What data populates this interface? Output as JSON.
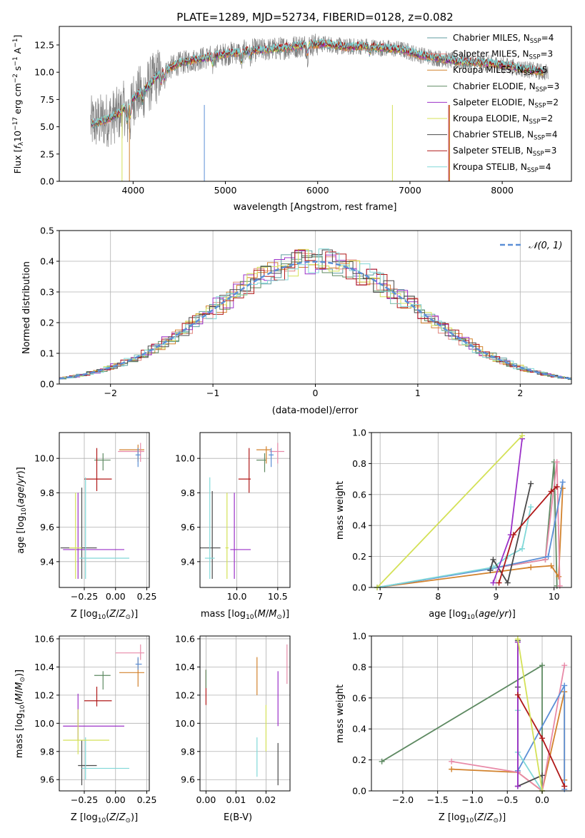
{
  "figure_title": "PLATE=1289, MJD=52734, FIBERID=0128, z=0.082",
  "legend_spectrum": [
    {
      "label": "Chabrier MILES, N$_{SSP}$=4",
      "text": "Chabrier MILES, N",
      "sub": "SSP",
      "suffix": "=4",
      "color": "#5f9ea0"
    },
    {
      "label": "Salpeter MILES, N$_{SSP}$=3",
      "text": "Salpeter MILES, N",
      "sub": "SSP",
      "suffix": "=3",
      "color": "#e0857e"
    },
    {
      "label": "Kroupa MILES, N$_{SSP}$=5",
      "text": "Kroupa MILES, N",
      "sub": "SSP",
      "suffix": "=5",
      "color": "#d2822d"
    },
    {
      "label": "Chabrier ELODIE, N$_{SSP}$=3",
      "text": "Chabrier ELODIE, N",
      "sub": "SSP",
      "suffix": "=3",
      "color": "#5e8a62"
    },
    {
      "label": "Salpeter ELODIE, N$_{SSP}$=2",
      "text": "Salpeter ELODIE, N",
      "sub": "SSP",
      "suffix": "=2",
      "color": "#9b30c8"
    },
    {
      "label": "Kroupa ELODIE, N$_{SSP}$=2",
      "text": "Kroupa ELODIE, N",
      "sub": "SSP",
      "suffix": "=2",
      "color": "#d4e157"
    },
    {
      "label": "Chabrier STELIB, N$_{SSP}$=4",
      "text": "Chabrier STELIB, N",
      "sub": "SSP",
      "suffix": "=4",
      "color": "#4a4a4a"
    },
    {
      "label": "Salpeter STELIB, N$_{SSP}$=3",
      "text": "Salpeter STELIB, N",
      "sub": "SSP",
      "suffix": "=3",
      "color": "#b01818"
    },
    {
      "label": "Kroupa STELIB, N$_{SSP}$=4",
      "text": "Kroupa STELIB, N",
      "sub": "SSP",
      "suffix": "=4",
      "color": "#80d8d8"
    }
  ],
  "legend_residual": "𝒩(0, 1)",
  "chart_data": [
    {
      "type": "line",
      "panel": "spectrum",
      "xlabel": "wavelength [Angstrom, rest frame]",
      "ylabel": "Flux [f$_\\lambda$10$^{-17}$ erg cm$^{-2}$ s$^{-1}$ A$^{-1}$]",
      "ylabel_parts": {
        "a": "Flux [",
        "b": "f",
        "bsub": "λ",
        "c": "10",
        "csup": "−17",
        "d": " erg cm",
        "dsup": "−2",
        "e": " s",
        "esup": "−1",
        "f": " A",
        "fsup": "−1",
        "g": "]"
      },
      "xlim": [
        3200,
        8750
      ],
      "ylim": [
        0,
        14.2
      ],
      "xticks": [
        4000,
        5000,
        6000,
        7000,
        8000
      ],
      "yticks": [
        0.0,
        2.5,
        5.0,
        7.5,
        10.0,
        12.5
      ],
      "data_trend": {
        "wavelength": [
          3550,
          3700,
          3850,
          4000,
          4150,
          4300,
          4500,
          4700,
          4900,
          5100,
          5300,
          5500,
          5700,
          5900,
          6100,
          6300,
          6500,
          6700,
          6900,
          7100,
          7300,
          7500,
          7700,
          7900,
          8100,
          8300,
          8450
        ],
        "flux": [
          5.3,
          5.6,
          6.2,
          7.6,
          8.6,
          10.0,
          10.8,
          11.2,
          11.5,
          11.8,
          12.0,
          12.1,
          12.3,
          12.5,
          12.6,
          12.3,
          12.4,
          12.2,
          12.1,
          11.6,
          11.3,
          11.0,
          10.9,
          10.8,
          10.5,
          10.2,
          10.0
        ]
      },
      "grid": false,
      "legend_position": "upper right"
    },
    {
      "type": "bar",
      "panel": "residuals",
      "xlabel": "(data-model)/error",
      "ylabel": "Normed distribution",
      "xlim": [
        -2.5,
        2.5
      ],
      "ylim": [
        0,
        0.5
      ],
      "xticks": [
        -2,
        -1,
        0,
        1,
        2
      ],
      "xtick_labels": [
        "−2",
        "−1",
        "0",
        "1",
        "2"
      ],
      "yticks": [
        0.0,
        0.1,
        0.2,
        0.3,
        0.4,
        0.5
      ],
      "grid": true,
      "reference_curve": "standard normal N(0,1)",
      "legend_position": "upper right"
    },
    {
      "type": "scatter",
      "panel": "age-Z",
      "xlabel": "Z [log10(Z/Z⊙)]",
      "ylabel": "age [log10(age/yr)]",
      "xlim": [
        -0.45,
        0.27
      ],
      "ylim": [
        9.25,
        10.15
      ],
      "xticks": [
        -0.25,
        0.0,
        0.25
      ],
      "xtick_labels": [
        "−0.25",
        "0.00",
        "0.25"
      ],
      "yticks": [
        9.4,
        9.6,
        9.8,
        10.0
      ],
      "grid": true,
      "points": [
        {
          "x": -0.1,
          "y": 9.99,
          "xerr": [
            0.07,
            0.06
          ],
          "yerr": [
            0.06,
            0.04
          ],
          "color": "#5e8a62"
        },
        {
          "x": -0.15,
          "y": 9.88,
          "xerr": [
            0.1,
            0.12
          ],
          "yerr": [
            0.07,
            0.18
          ],
          "color": "#b01818"
        },
        {
          "x": 0.18,
          "y": 10.05,
          "xerr": [
            0.15,
            0.05
          ],
          "yerr": [
            0.07,
            0.03
          ],
          "color": "#d2822d"
        },
        {
          "x": 0.2,
          "y": 10.04,
          "xerr": [
            0.18,
            0.03
          ],
          "yerr": [
            0.06,
            0.05
          ],
          "color": "#e88aa8"
        },
        {
          "x": 0.18,
          "y": 10.02,
          "xerr": [
            0.02,
            0.02
          ],
          "yerr": [
            0.07,
            0.04
          ],
          "color": "#5b8fd6"
        },
        {
          "x": -0.27,
          "y": 9.48,
          "xerr": [
            0.17,
            0.12
          ],
          "yerr": [
            0.18,
            0.35
          ],
          "color": "#4a4a4a"
        },
        {
          "x": -0.3,
          "y": 9.47,
          "xerr": [
            0.12,
            0.37
          ],
          "yerr": [
            0.17,
            0.33
          ],
          "color": "#9b30c8"
        },
        {
          "x": -0.24,
          "y": 9.42,
          "xerr": [
            0.05,
            0.35
          ],
          "yerr": [
            0.12,
            0.47
          ],
          "color": "#80d8d8"
        },
        {
          "x": -0.32,
          "y": 9.48,
          "xerr": [
            0.05,
            0.05
          ],
          "yerr": [
            0.18,
            0.32
          ],
          "color": "#d4e157"
        }
      ]
    },
    {
      "type": "scatter",
      "panel": "age-mass",
      "xlabel": "mass [log10(M/M⊙)]",
      "xlim": [
        9.55,
        10.65
      ],
      "ylim": [
        9.25,
        10.15
      ],
      "xticks": [
        10.0,
        10.5
      ],
      "xtick_labels": [
        "10.0",
        "10.5"
      ],
      "yticks": [
        9.4,
        9.6,
        9.8,
        10.0
      ],
      "grid": true,
      "points": [
        {
          "x": 10.34,
          "y": 9.99,
          "xerr": [
            0.1,
            0.02
          ],
          "yerr": [
            0.07,
            0.04
          ],
          "color": "#5e8a62"
        },
        {
          "x": 10.15,
          "y": 9.88,
          "xerr": [
            0.13,
            0.02
          ],
          "yerr": [
            0.08,
            0.18
          ],
          "color": "#b01818"
        },
        {
          "x": 10.36,
          "y": 10.05,
          "xerr": [
            0.12,
            0.06
          ],
          "yerr": [
            0.08,
            0.02
          ],
          "color": "#d2822d"
        },
        {
          "x": 10.5,
          "y": 10.04,
          "xerr": [
            0.1,
            0.08
          ],
          "yerr": [
            0.07,
            0.05
          ],
          "color": "#e88aa8"
        },
        {
          "x": 10.42,
          "y": 10.02,
          "xerr": [
            0.03,
            0.03
          ],
          "yerr": [
            0.07,
            0.04
          ],
          "color": "#5b8fd6"
        },
        {
          "x": 9.7,
          "y": 9.48,
          "xerr": [
            0.15,
            0.1
          ],
          "yerr": [
            0.18,
            0.33
          ],
          "color": "#4a4a4a"
        },
        {
          "x": 9.97,
          "y": 9.47,
          "xerr": [
            0.05,
            0.2
          ],
          "yerr": [
            0.17,
            0.33
          ],
          "color": "#9b30c8"
        },
        {
          "x": 9.67,
          "y": 9.42,
          "xerr": [
            0.06,
            0.06
          ],
          "yerr": [
            0.12,
            0.47
          ],
          "color": "#80d8d8"
        },
        {
          "x": 9.88,
          "y": 9.48,
          "xerr": [
            0.02,
            0.02
          ],
          "yerr": [
            0.18,
            0.32
          ],
          "color": "#d4e157"
        }
      ]
    },
    {
      "type": "line",
      "panel": "weight-age",
      "xlabel": "age [log10(age/yr)]",
      "ylabel": "mass weight",
      "xlim": [
        6.85,
        10.3
      ],
      "ylim": [
        0,
        1.0
      ],
      "xticks": [
        7,
        8,
        9,
        10
      ],
      "yticks": [
        0.0,
        0.2,
        0.4,
        0.6,
        0.8,
        1.0
      ],
      "grid": true,
      "series": [
        {
          "color": "#5e8a62",
          "x": [
            6.95,
            9.85,
            10.0,
            10.05
          ],
          "y": [
            0.0,
            0.18,
            0.81,
            0.01
          ]
        },
        {
          "color": "#d2822d",
          "x": [
            6.95,
            9.6,
            9.95,
            10.08,
            10.15
          ],
          "y": [
            0.0,
            0.13,
            0.14,
            0.07,
            0.64
          ]
        },
        {
          "color": "#e88aa8",
          "x": [
            6.95,
            9.85,
            10.05,
            10.1
          ],
          "y": [
            0.0,
            0.18,
            0.81,
            0.01
          ]
        },
        {
          "color": "#5b8fd6",
          "x": [
            6.95,
            8.9,
            9.9,
            10.15
          ],
          "y": [
            0.0,
            0.12,
            0.2,
            0.68
          ]
        },
        {
          "color": "#80d8d8",
          "x": [
            6.95,
            8.95,
            9.2,
            9.45,
            9.6
          ],
          "y": [
            0.0,
            0.13,
            0.2,
            0.25,
            0.52
          ]
        },
        {
          "color": "#4a4a4a",
          "x": [
            8.9,
            8.95,
            9.2,
            9.6
          ],
          "y": [
            0.11,
            0.18,
            0.03,
            0.67
          ]
        },
        {
          "color": "#9b30c8",
          "x": [
            8.95,
            9.25,
            9.45
          ],
          "y": [
            0.03,
            0.34,
            0.96
          ]
        },
        {
          "color": "#b01818",
          "x": [
            9.05,
            9.3,
            9.95,
            10.05
          ],
          "y": [
            0.03,
            0.34,
            0.62,
            0.65
          ]
        },
        {
          "color": "#d4e157",
          "x": [
            6.95,
            9.45
          ],
          "y": [
            0.0,
            0.98
          ]
        }
      ]
    },
    {
      "type": "scatter",
      "panel": "mass-Z",
      "xlabel": "Z [log10(Z/Z⊙)]",
      "ylabel": "mass [log10(M/M⊙)]",
      "xlim": [
        -0.45,
        0.27
      ],
      "ylim": [
        9.52,
        10.62
      ],
      "xticks": [
        -0.25,
        0.0,
        0.25
      ],
      "xtick_labels": [
        "−0.25",
        "0.00",
        "0.25"
      ],
      "yticks": [
        9.6,
        9.8,
        10.0,
        10.2,
        10.4,
        10.6
      ],
      "grid": true,
      "points": [
        {
          "x": -0.1,
          "y": 10.34,
          "xerr": [
            0.07,
            0.06
          ],
          "yerr": [
            0.1,
            0.03
          ],
          "color": "#5e8a62"
        },
        {
          "x": -0.15,
          "y": 10.16,
          "xerr": [
            0.1,
            0.12
          ],
          "yerr": [
            0.04,
            0.1
          ],
          "color": "#b01818"
        },
        {
          "x": 0.18,
          "y": 10.36,
          "xerr": [
            0.15,
            0.05
          ],
          "yerr": [
            0.1,
            0.1
          ],
          "color": "#d2822d"
        },
        {
          "x": 0.2,
          "y": 10.5,
          "xerr": [
            0.2,
            0.03
          ],
          "yerr": [
            0.05,
            0.06
          ],
          "color": "#e88aa8"
        },
        {
          "x": 0.18,
          "y": 10.42,
          "xerr": [
            0.02,
            0.03
          ],
          "yerr": [
            0.04,
            0.05
          ],
          "color": "#5b8fd6"
        },
        {
          "x": -0.27,
          "y": 9.7,
          "xerr": [
            0.03,
            0.12
          ],
          "yerr": [
            0.14,
            0.18
          ],
          "color": "#4a4a4a"
        },
        {
          "x": -0.3,
          "y": 9.98,
          "xerr": [
            0.12,
            0.37
          ],
          "yerr": [
            0.1,
            0.23
          ],
          "color": "#9b30c8"
        },
        {
          "x": -0.24,
          "y": 9.68,
          "xerr": [
            0.03,
            0.35
          ],
          "yerr": [
            0.08,
            0.22
          ],
          "color": "#80d8d8"
        },
        {
          "x": -0.3,
          "y": 9.88,
          "xerr": [
            0.12,
            0.25
          ],
          "yerr": [
            0.1,
            0.22
          ],
          "color": "#d4e157"
        }
      ]
    },
    {
      "type": "scatter",
      "panel": "mass-EBV",
      "xlabel": "E(B-V)",
      "xlim": [
        -0.002,
        0.028
      ],
      "ylim": [
        9.52,
        10.62
      ],
      "xticks": [
        0.0,
        0.01,
        0.02
      ],
      "xtick_labels": [
        "0.00",
        "0.01",
        "0.02"
      ],
      "yticks": [
        9.6,
        9.8,
        10.0,
        10.2,
        10.4,
        10.6
      ],
      "grid": true,
      "points": [
        {
          "x": 0.0,
          "y": 10.2,
          "yerr": [
            0.07,
            0.18
          ],
          "color": "#b01818"
        },
        {
          "x": 0.0,
          "y": 10.3,
          "yerr": [
            0.05,
            0.08
          ],
          "color": "#5e8a62"
        },
        {
          "x": 0.017,
          "y": 10.3,
          "yerr": [
            0.1,
            0.17
          ],
          "color": "#d2822d"
        },
        {
          "x": 0.017,
          "y": 9.75,
          "yerr": [
            0.13,
            0.15
          ],
          "color": "#80d8d8"
        },
        {
          "x": 0.02,
          "y": 9.98,
          "yerr": [
            0.18,
            0.15
          ],
          "color": "#d4e157"
        },
        {
          "x": 0.024,
          "y": 10.15,
          "yerr": [
            0.17,
            0.22
          ],
          "color": "#9b30c8"
        },
        {
          "x": 0.024,
          "y": 9.72,
          "yerr": [
            0.16,
            0.14
          ],
          "color": "#4a4a4a"
        },
        {
          "x": 0.027,
          "y": 10.42,
          "yerr": [
            0.14,
            0.14
          ],
          "color": "#e88aa8"
        }
      ]
    },
    {
      "type": "line",
      "panel": "weight-Z",
      "xlabel": "Z [log10(Z/Z⊙)]",
      "ylabel": "mass weight",
      "xlim": [
        -2.45,
        0.42
      ],
      "ylim": [
        0,
        1.0
      ],
      "xticks": [
        -2.0,
        -1.5,
        -1.0,
        -0.5,
        0.0
      ],
      "xtick_labels": [
        "−2.0",
        "−1.5",
        "−1.0",
        "−0.5",
        "0.0"
      ],
      "yticks": [
        0.0,
        0.2,
        0.4,
        0.6,
        0.8,
        1.0
      ],
      "grid": true,
      "series": [
        {
          "color": "#5e8a62",
          "x": [
            -2.3,
            0.0,
            0.0
          ],
          "y": [
            0.19,
            0.81,
            0.0
          ]
        },
        {
          "color": "#d2822d",
          "x": [
            -1.3,
            -0.35,
            0.0,
            0.32,
            0.32
          ],
          "y": [
            0.14,
            0.12,
            0.0,
            0.64,
            0.07
          ]
        },
        {
          "color": "#e88aa8",
          "x": [
            -1.3,
            -0.35,
            0.0,
            0.32
          ],
          "y": [
            0.19,
            0.12,
            0.0,
            0.81
          ]
        },
        {
          "color": "#5b8fd6",
          "x": [
            -0.35,
            0.32,
            0.32
          ],
          "y": [
            0.13,
            0.68,
            0.01
          ]
        },
        {
          "color": "#80d8d8",
          "x": [
            -0.35,
            -0.35,
            0.0
          ],
          "y": [
            0.52,
            0.25,
            0.0
          ]
        },
        {
          "color": "#4a4a4a",
          "x": [
            -0.35,
            -0.35,
            -0.35,
            0.0
          ],
          "y": [
            0.97,
            0.67,
            0.03,
            0.1
          ]
        },
        {
          "color": "#9b30c8",
          "x": [
            -0.35,
            -0.35
          ],
          "y": [
            0.96,
            0.03
          ]
        },
        {
          "color": "#b01818",
          "x": [
            -0.35,
            0.0,
            0.32
          ],
          "y": [
            0.62,
            0.34,
            0.03
          ]
        },
        {
          "color": "#d4e157",
          "x": [
            -0.35,
            0.0
          ],
          "y": [
            0.98,
            0.0
          ]
        }
      ]
    }
  ]
}
